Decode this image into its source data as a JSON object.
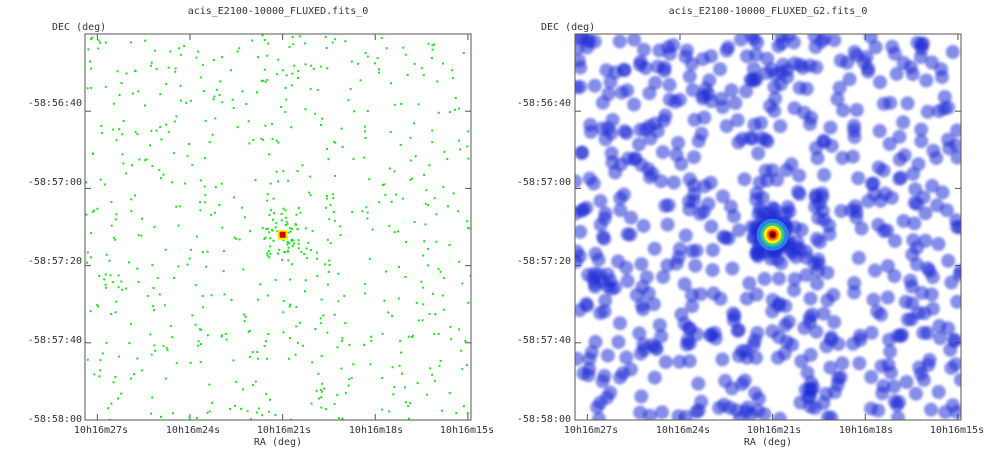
{
  "chart_data": [
    {
      "type": "heatmap",
      "title": "acis_E2100-10000_FLUXED.fits_0",
      "xlabel": "RA (deg)",
      "ylabel": "DEC (deg)",
      "x_ticks": [
        "10h16m27s",
        "10h16m24s",
        "10h16m21s",
        "10h16m18s",
        "10h16m15s"
      ],
      "y_ticks": [
        "-58:56:40",
        "-58:57:00",
        "-58:57:20",
        "-58:57:40",
        "-58:58:00"
      ],
      "x_tick_seconds": [
        27,
        24,
        21,
        18,
        15
      ],
      "y_tick_arcsec": [
        40,
        60,
        80,
        100,
        120
      ],
      "x_range_seconds": [
        27.4,
        14.9
      ],
      "y_range_arcsec": [
        20,
        120
      ],
      "source": {
        "ra_seconds": 21.0,
        "dec_arcsec": 72
      },
      "colormap": "sparse green counts with red/yellow peak",
      "smoothed": false
    },
    {
      "type": "heatmap",
      "title": "acis_E2100-10000_FLUXED_G2.fits_0",
      "xlabel": "RA (deg)",
      "ylabel": "DEC (deg)",
      "x_ticks": [
        "10h16m27s",
        "10h16m24s",
        "10h16m21s",
        "10h16m18s",
        "10h16m15s"
      ],
      "y_ticks": [
        "-58:56:40",
        "-58:57:00",
        "-58:57:20",
        "-58:57:40",
        "-58:58:00"
      ],
      "x_tick_seconds": [
        27,
        24,
        21,
        18,
        15
      ],
      "y_tick_arcsec": [
        40,
        60,
        80,
        100,
        120
      ],
      "x_range_seconds": [
        27.4,
        14.9
      ],
      "y_range_arcsec": [
        20,
        120
      ],
      "source": {
        "ra_seconds": 21.0,
        "dec_arcsec": 72
      },
      "colormap": "gaussian-smoothed blue blobs with yellow/red peak",
      "smoothed": true
    }
  ],
  "colors": {
    "frame": "#555555",
    "raw_count": "#22dd22",
    "smooth_blob": "#1f2dd6",
    "peak_red": "#cc0000",
    "peak_yellow": "#ffee00"
  }
}
